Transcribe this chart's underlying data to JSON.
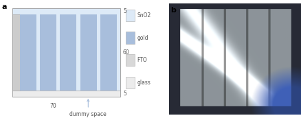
{
  "fig_width": 4.39,
  "fig_height": 1.72,
  "dpi": 100,
  "label_a": "a",
  "label_b": "b",
  "glass_color": "#ececec",
  "fto_color": "#d8d8d8",
  "gold_color": "#a8bedc",
  "sno2_color": "#ddeaf7",
  "dummy_color": "#cccccc",
  "gap_color": "#ddeaf7",
  "num_stripes": 5,
  "label_60": "60",
  "label_5_top": "5",
  "label_5_bot": "5",
  "label_70": "70",
  "label_dummy": "dummy space",
  "legend_labels": [
    "SnO2",
    "gold",
    "FTO",
    "glass"
  ],
  "legend_colors": [
    "#ddeaf7",
    "#a8bedc",
    "#d8d8d8",
    "#ececec"
  ],
  "font_size": 5.5,
  "font_color": "#555555"
}
